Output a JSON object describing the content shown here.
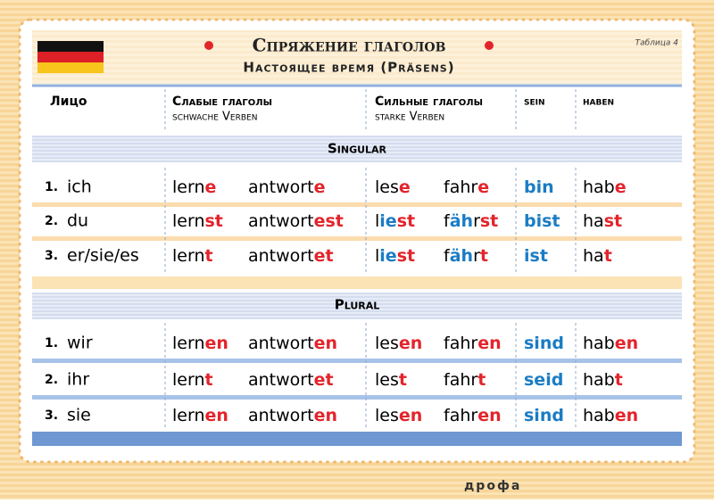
{
  "header": {
    "title": "Спряжение глаголов",
    "subtitle": "Настоящее время (Präsens)",
    "table_no": "Таблица 4"
  },
  "columns": {
    "person": "Лицо",
    "weak": "Слабые глаголы",
    "weak_de": "schwache Verben",
    "strong": "Сильные глаголы",
    "strong_de": "starke Verben",
    "sein": "sein",
    "haben": "haben"
  },
  "singular": {
    "label": "Singular",
    "rows": [
      {
        "num": "1.",
        "pron": "ich",
        "cells": [
          [
            {
              "text": "lern"
            },
            {
              "text": "e",
              "color": "#e3242b"
            }
          ],
          [
            {
              "text": "antwort"
            },
            {
              "text": "e",
              "color": "#e3242b"
            }
          ],
          [
            {
              "text": "les"
            },
            {
              "text": "e",
              "color": "#e3242b"
            }
          ],
          [
            {
              "text": "fahr"
            },
            {
              "text": "e",
              "color": "#e3242b"
            }
          ],
          [
            {
              "text": "bin",
              "color": "#1b7cc4"
            }
          ],
          [
            {
              "text": "hab"
            },
            {
              "text": "e",
              "color": "#e3242b"
            }
          ]
        ]
      },
      {
        "num": "2.",
        "pron": "du",
        "cells": [
          [
            {
              "text": "lern"
            },
            {
              "text": "st",
              "color": "#e3242b"
            }
          ],
          [
            {
              "text": "antwort"
            },
            {
              "text": "est",
              "color": "#e3242b"
            }
          ],
          [
            {
              "text": "l"
            },
            {
              "text": "ie",
              "color": "#1b7cc4"
            },
            {
              "text": "st",
              "color": "#e3242b"
            }
          ],
          [
            {
              "text": "f"
            },
            {
              "text": "äh",
              "color": "#1b7cc4"
            },
            {
              "text": "r"
            },
            {
              "text": "st",
              "color": "#e3242b"
            }
          ],
          [
            {
              "text": "bist",
              "color": "#1b7cc4"
            }
          ],
          [
            {
              "text": "ha"
            },
            {
              "text": "st",
              "color": "#e3242b"
            }
          ]
        ]
      },
      {
        "num": "3.",
        "pron": "er/sie/es",
        "cells": [
          [
            {
              "text": "lern"
            },
            {
              "text": "t",
              "color": "#e3242b"
            }
          ],
          [
            {
              "text": "antwort"
            },
            {
              "text": "et",
              "color": "#e3242b"
            }
          ],
          [
            {
              "text": "l"
            },
            {
              "text": "ie",
              "color": "#1b7cc4"
            },
            {
              "text": "st",
              "color": "#e3242b"
            }
          ],
          [
            {
              "text": "f"
            },
            {
              "text": "äh",
              "color": "#1b7cc4"
            },
            {
              "text": "r"
            },
            {
              "text": "t",
              "color": "#e3242b"
            }
          ],
          [
            {
              "text": "ist",
              "color": "#1b7cc4"
            }
          ],
          [
            {
              "text": "ha"
            },
            {
              "text": "t",
              "color": "#e3242b"
            }
          ]
        ]
      }
    ]
  },
  "plural": {
    "label": "Plural",
    "rows": [
      {
        "num": "1.",
        "pron": "wir",
        "cells": [
          [
            {
              "text": "lern"
            },
            {
              "text": "en",
              "color": "#e3242b"
            }
          ],
          [
            {
              "text": "antwort"
            },
            {
              "text": "en",
              "color": "#e3242b"
            }
          ],
          [
            {
              "text": "les"
            },
            {
              "text": "en",
              "color": "#e3242b"
            }
          ],
          [
            {
              "text": "fahr"
            },
            {
              "text": "en",
              "color": "#e3242b"
            }
          ],
          [
            {
              "text": "sind",
              "color": "#1b7cc4"
            }
          ],
          [
            {
              "text": "hab"
            },
            {
              "text": "en",
              "color": "#e3242b"
            }
          ]
        ]
      },
      {
        "num": "2.",
        "pron": "ihr",
        "cells": [
          [
            {
              "text": "lern"
            },
            {
              "text": "t",
              "color": "#e3242b"
            }
          ],
          [
            {
              "text": "antwort"
            },
            {
              "text": "et",
              "color": "#e3242b"
            }
          ],
          [
            {
              "text": "les"
            },
            {
              "text": "t",
              "color": "#e3242b"
            }
          ],
          [
            {
              "text": "fahr"
            },
            {
              "text": "t",
              "color": "#e3242b"
            }
          ],
          [
            {
              "text": "seid",
              "color": "#1b7cc4"
            }
          ],
          [
            {
              "text": "hab"
            },
            {
              "text": "t",
              "color": "#e3242b"
            }
          ]
        ]
      },
      {
        "num": "3.",
        "pron": "sie",
        "cells": [
          [
            {
              "text": "lern"
            },
            {
              "text": "en",
              "color": "#e3242b"
            }
          ],
          [
            {
              "text": "antwort"
            },
            {
              "text": "en",
              "color": "#e3242b"
            }
          ],
          [
            {
              "text": "les"
            },
            {
              "text": "en",
              "color": "#e3242b"
            }
          ],
          [
            {
              "text": "fahr"
            },
            {
              "text": "en",
              "color": "#e3242b"
            }
          ],
          [
            {
              "text": "sind",
              "color": "#1b7cc4"
            }
          ],
          [
            {
              "text": "hab"
            },
            {
              "text": "en",
              "color": "#e3242b"
            }
          ]
        ]
      }
    ]
  },
  "footer": {
    "publisher": "дрофа"
  }
}
